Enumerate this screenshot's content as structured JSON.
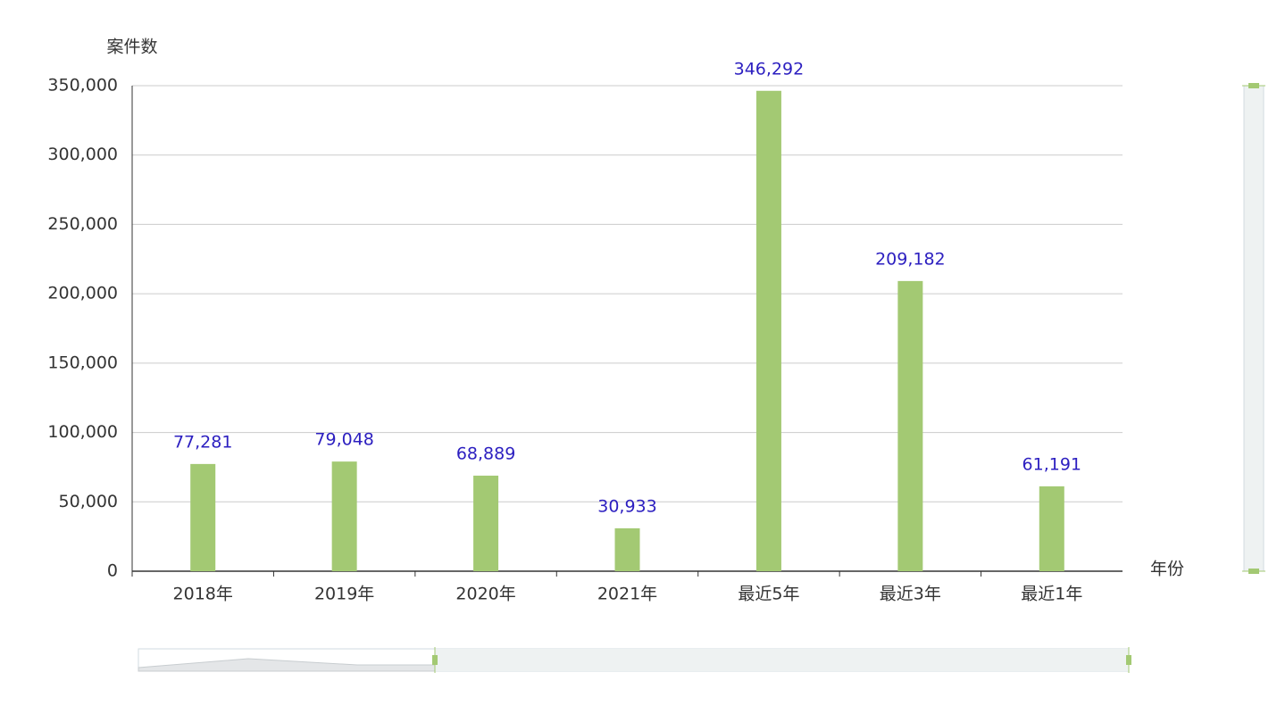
{
  "chart_data": {
    "type": "bar",
    "y_axis_name": "案件数",
    "x_axis_name": "年份",
    "categories": [
      "2018年",
      "2019年",
      "2020年",
      "2021年",
      "最近5年",
      "最近3年",
      "最近1年"
    ],
    "values": [
      77281,
      79048,
      68889,
      30933,
      346292,
      209182,
      61191
    ],
    "value_labels": [
      "77,281",
      "79,048",
      "68,889",
      "30,933",
      "346,292",
      "209,182",
      "61,191"
    ],
    "color": "#a3c973",
    "label_color": "#2c1fc0",
    "ylim": [
      0,
      350000
    ],
    "yticks": [
      0,
      {
        "value": 50000,
        "label": "50,000"
      },
      {
        "value": 100000,
        "label": "100,000"
      },
      {
        "value": 150000,
        "label": "150,000"
      },
      {
        "value": 200000,
        "label": "200,000"
      },
      {
        "value": 250000,
        "label": "250,000"
      },
      {
        "value": 300000,
        "label": "300,000"
      },
      {
        "value": 350000,
        "label": "350,000"
      }
    ],
    "grid": true
  }
}
